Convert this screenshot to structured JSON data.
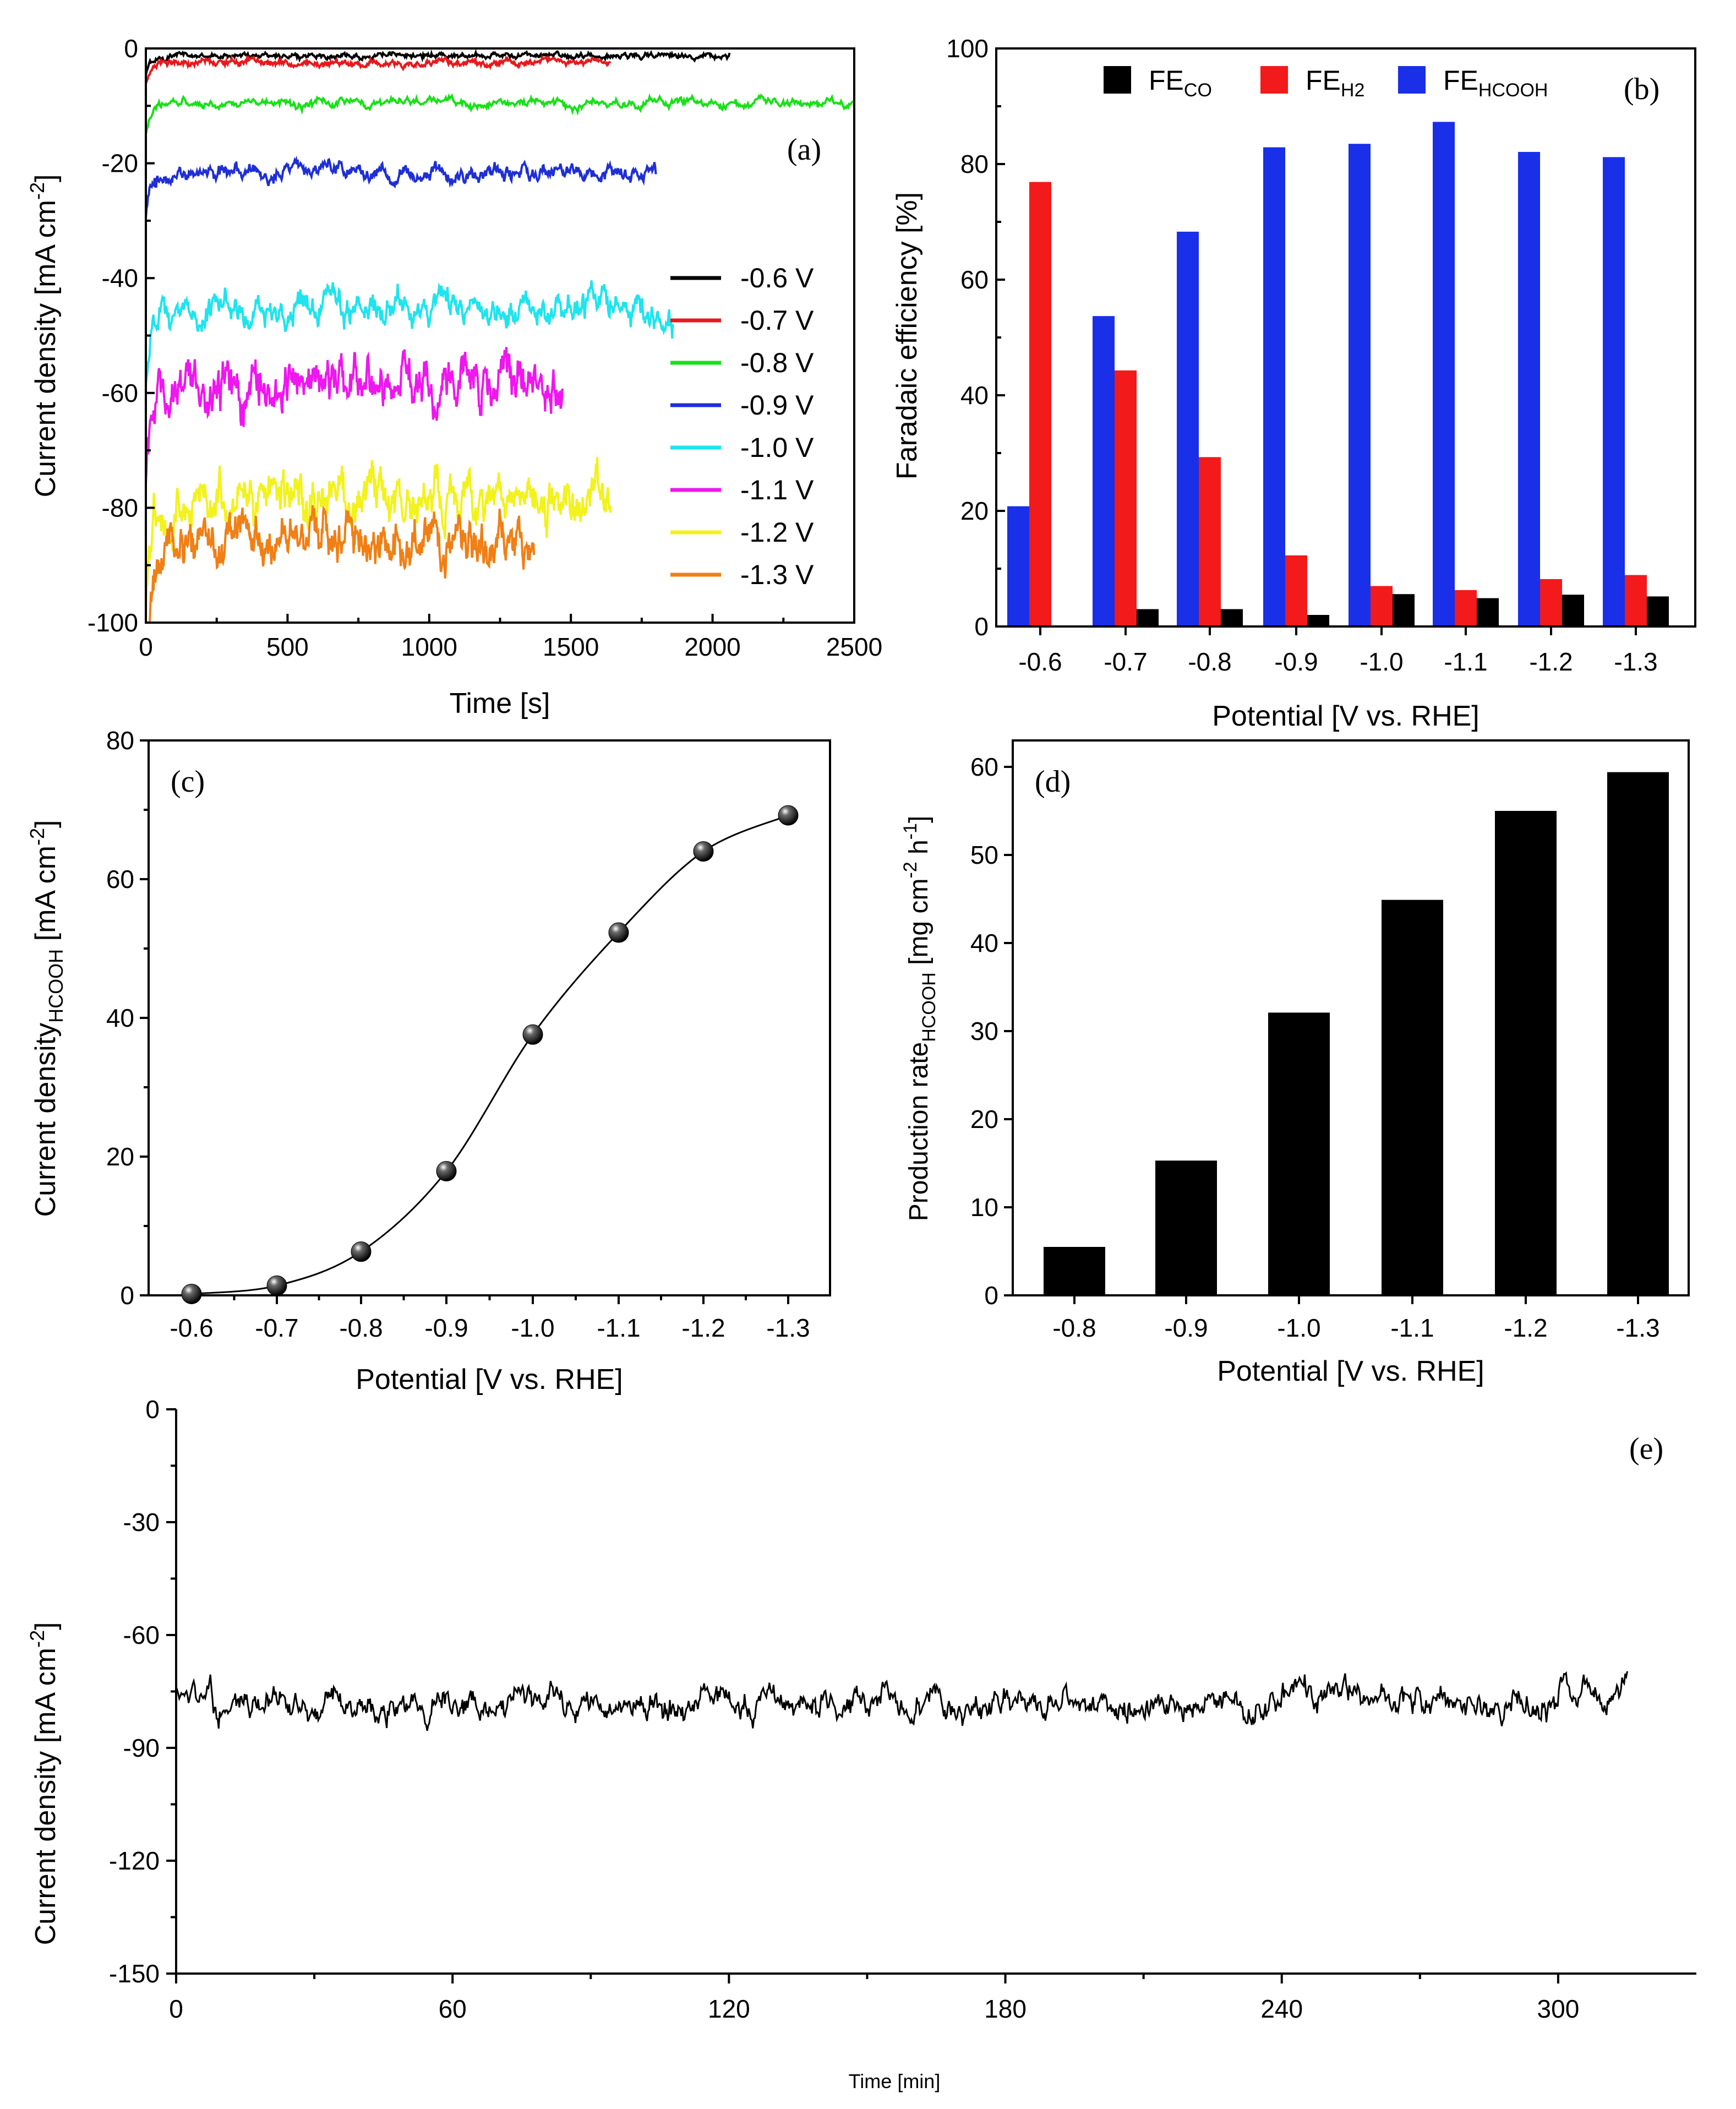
{
  "chart_data": [
    {
      "panel": "(a)",
      "type": "line",
      "xlabel": "Time [s]",
      "ylabel": "Current density [mA cm",
      "ylabel_sup": "-2",
      "ylabel_end": "]",
      "xlim": [
        0,
        2500
      ],
      "ylim": [
        -100,
        0
      ],
      "xticks": [
        0,
        500,
        1000,
        1500,
        2000,
        2500
      ],
      "yticks": [
        -100,
        -80,
        -60,
        -40,
        -20,
        0
      ],
      "series": [
        {
          "name": "-0.6 V",
          "color": "#000000",
          "end": 2060,
          "mean": -1.2,
          "noise": 0.2
        },
        {
          "name": "-0.7 V",
          "color": "#e8191c",
          "end": 1640,
          "mean": -2.5,
          "noise": 0.2
        },
        {
          "name": "-0.8 V",
          "color": "#19e019",
          "end": 2500,
          "mean": -9.5,
          "noise": 0.3
        },
        {
          "name": "-0.9 V",
          "color": "#1f2fd6",
          "end": 1800,
          "mean": -21.5,
          "noise": 0.5
        },
        {
          "name": "-1.0 V",
          "color": "#1ee4ee",
          "end": 1860,
          "mean": -45.5,
          "noise": 1.0
        },
        {
          "name": "-1.1 V",
          "color": "#ef16ef",
          "end": 1470,
          "mean": -58.5,
          "noise": 1.4
        },
        {
          "name": "-1.2 V",
          "color": "#f2f21c",
          "end": 1640,
          "mean": -78.0,
          "noise": 1.5
        },
        {
          "name": "-1.3 V",
          "color": "#f07f15",
          "end": 1370,
          "mean": -86.0,
          "noise": 1.4
        }
      ]
    },
    {
      "panel": "(b)",
      "type": "bar",
      "xlabel": "Potential [V vs. RHE]",
      "ylabel": "Faradaic efficiency [%]",
      "ylim": [
        0,
        100
      ],
      "yticks": [
        0,
        20,
        40,
        60,
        80,
        100
      ],
      "categories": [
        "-0.6",
        "-0.7",
        "-0.8",
        "-0.9",
        "-1.0",
        "-1.1",
        "-1.2",
        "-1.3"
      ],
      "series": [
        {
          "name": "FE",
          "sub": "HCOOH",
          "color": "#1a2fe8",
          "values": [
            20.8,
            53.7,
            68.3,
            82.9,
            83.5,
            87.3,
            82.1,
            81.2
          ]
        },
        {
          "name": "FE",
          "sub": "H2",
          "color": "#f21a1a",
          "values": [
            76.9,
            44.3,
            29.3,
            12.3,
            7.0,
            6.3,
            8.2,
            8.9
          ]
        },
        {
          "name": "FE",
          "sub": "CO",
          "color": "#000000",
          "values": [
            0,
            3.0,
            3.0,
            2.0,
            5.6,
            4.9,
            5.5,
            5.2
          ]
        }
      ],
      "legend_order": [
        2,
        1,
        0
      ]
    },
    {
      "panel": "(c)",
      "type": "line",
      "xlabel": "Potential [V vs. RHE]",
      "ylabel": "Current density",
      "ylabel_sub": "HCOOH",
      "ylabel_end": " [mA cm",
      "ylabel_sup": "-2",
      "ylabel_close": "]",
      "ylim": [
        0,
        80
      ],
      "yticks": [
        0,
        20,
        40,
        60,
        80
      ],
      "categories": [
        "-0.6",
        "-0.7",
        "-0.8",
        "-0.9",
        "-1.0",
        "-1.1",
        "-1.2",
        "-1.3"
      ],
      "values": [
        0.2,
        1.4,
        6.3,
        17.9,
        37.6,
        52.3,
        64.0,
        69.2
      ]
    },
    {
      "panel": "(d)",
      "type": "bar",
      "xlabel": "Potential [V vs. RHE]",
      "ylabel": "Production rate",
      "ylabel_sub": "HCOOH",
      "ylabel_end": " [mg cm",
      "ylabel_sup1": "-2",
      "ylabel_mid": " h",
      "ylabel_sup2": "-1",
      "ylabel_close": "]",
      "ylim": [
        0,
        63
      ],
      "yticks": [
        0,
        10,
        20,
        30,
        40,
        50,
        60
      ],
      "categories": [
        "-0.8",
        "-0.9",
        "-1.0",
        "-1.1",
        "-1.2",
        "-1.3"
      ],
      "values": [
        5.5,
        15.3,
        32.1,
        44.9,
        55.0,
        59.4
      ]
    },
    {
      "panel": "(e)",
      "type": "line",
      "xlabel": "Time [min]",
      "ylabel": "Current density [mA cm",
      "ylabel_sup": "-2",
      "ylabel_end": "]",
      "xlim": [
        0,
        330
      ],
      "ylim": [
        -150,
        0
      ],
      "xticks": [
        0,
        60,
        120,
        180,
        240,
        300
      ],
      "yticks": [
        -150,
        -120,
        -90,
        -60,
        -30,
        0
      ],
      "series": [
        {
          "color": "#000000",
          "end": 315,
          "mean": -78.5,
          "noise": 1.2
        }
      ]
    }
  ]
}
